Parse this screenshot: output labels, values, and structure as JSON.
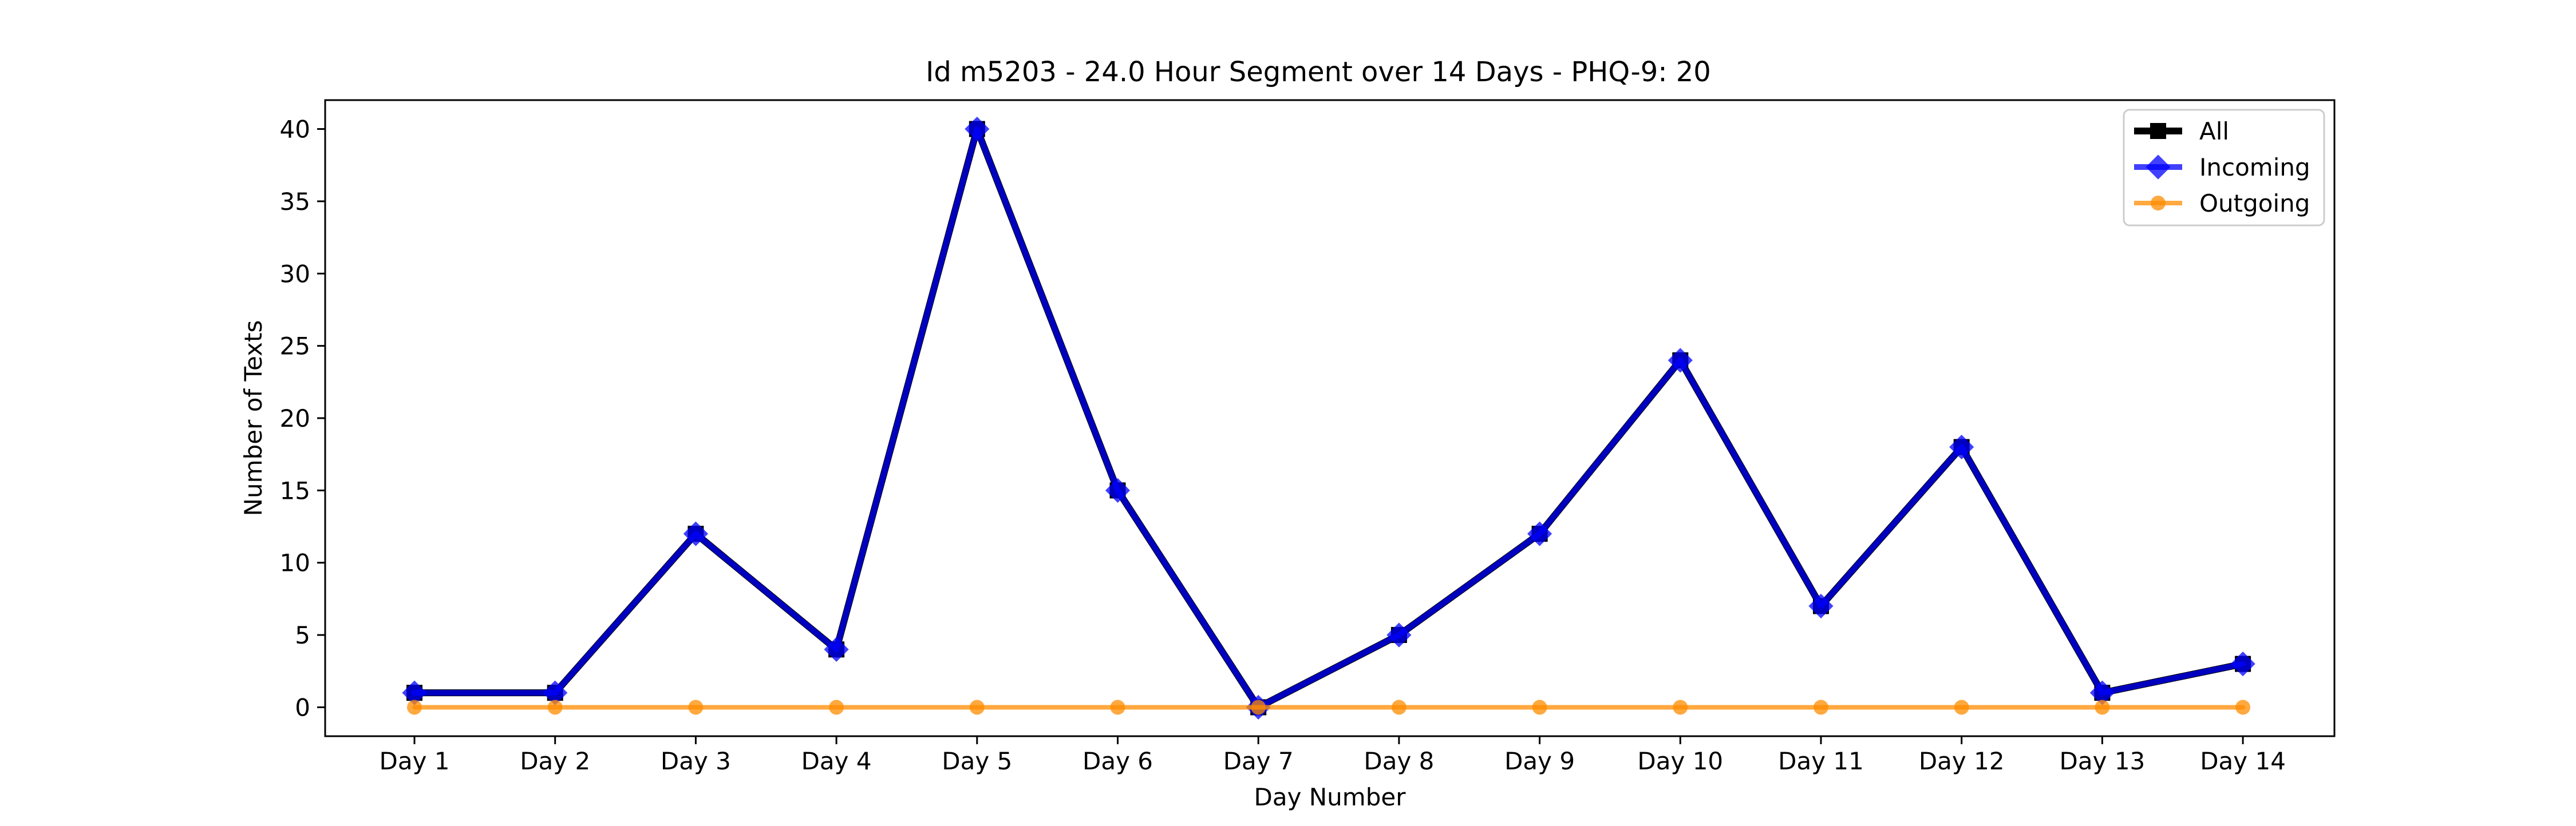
{
  "chart_data": {
    "type": "line",
    "title": "Id m5203 - 24.0 Hour Segment over 14 Days - PHQ-9: 20",
    "xlabel": "Day Number",
    "ylabel": "Number of Texts",
    "categories": [
      "Day 1",
      "Day 2",
      "Day 3",
      "Day 4",
      "Day 5",
      "Day 6",
      "Day 7",
      "Day 8",
      "Day 9",
      "Day 10",
      "Day 11",
      "Day 12",
      "Day 13",
      "Day 14"
    ],
    "ylim": [
      -2,
      42
    ],
    "yticks": [
      0,
      5,
      10,
      15,
      20,
      25,
      30,
      35,
      40
    ],
    "grid": false,
    "legend_position": "top-right",
    "series": [
      {
        "name": "All",
        "color": "#000000",
        "marker": "square",
        "values": [
          1,
          1,
          12,
          4,
          40,
          15,
          0,
          5,
          12,
          24,
          7,
          18,
          1,
          3
        ]
      },
      {
        "name": "Incoming",
        "color": "#0000ff",
        "marker": "diamond",
        "values": [
          1,
          1,
          12,
          4,
          40,
          15,
          0,
          5,
          12,
          24,
          7,
          18,
          1,
          3
        ]
      },
      {
        "name": "Outgoing",
        "color": "#ff8c00",
        "marker": "circle",
        "values": [
          0,
          0,
          0,
          0,
          0,
          0,
          0,
          0,
          0,
          0,
          0,
          0,
          0,
          0
        ]
      }
    ]
  }
}
